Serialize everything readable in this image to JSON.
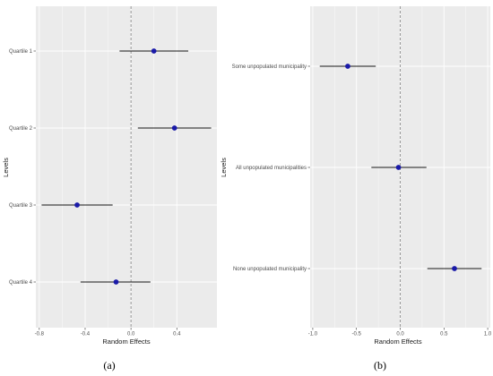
{
  "chart_data": [
    {
      "type": "scatter",
      "panel_label": "(a)",
      "xlabel": "Random Effects",
      "ylabel": "Levels",
      "categories": [
        "Quartile 1",
        "Quartile 2",
        "Quartile 3",
        "Quartile 4"
      ],
      "points": [
        {
          "level": "Quartile 1",
          "estimate": 0.2,
          "lower": -0.1,
          "upper": 0.5
        },
        {
          "level": "Quartile 2",
          "estimate": 0.38,
          "lower": 0.06,
          "upper": 0.7
        },
        {
          "level": "Quartile 3",
          "estimate": -0.47,
          "lower": -0.78,
          "upper": -0.16
        },
        {
          "level": "Quartile 4",
          "estimate": -0.13,
          "lower": -0.44,
          "upper": 0.17
        }
      ],
      "xlim": [
        -0.83,
        0.75
      ],
      "xticks": [
        -0.8,
        -0.4,
        0.0,
        0.4
      ],
      "xtick_labels": [
        "-0.8",
        "-0.4",
        "0.0",
        "0.4"
      ],
      "reference_line": 0,
      "grid": true,
      "colors": {
        "panel": "#ebebeb",
        "grid": "#ffffff",
        "point": "#1a1aa8",
        "errorbar": "#1a1a1a",
        "reference": "#808080"
      }
    },
    {
      "type": "scatter",
      "panel_label": "(b)",
      "xlabel": "Random Effects",
      "ylabel": "Levels",
      "categories": [
        "Some unpopulated municipality",
        "All unpopulated municipalities",
        "None unpopulated municipality"
      ],
      "points": [
        {
          "level": "Some unpopulated municipality",
          "estimate": -0.6,
          "lower": -0.92,
          "upper": -0.28
        },
        {
          "level": "All unpopulated municipalities",
          "estimate": -0.02,
          "lower": -0.33,
          "upper": 0.3
        },
        {
          "level": "None unpopulated municipality",
          "estimate": 0.62,
          "lower": 0.31,
          "upper": 0.93
        }
      ],
      "xlim": [
        -1.03,
        1.03
      ],
      "xticks": [
        -1.0,
        -0.5,
        0.0,
        0.5,
        1.0
      ],
      "xtick_labels": [
        "-1.0",
        "-0.5",
        "0.0",
        "0.5",
        "1.0"
      ],
      "reference_line": 0,
      "grid": true,
      "colors": {
        "panel": "#ebebeb",
        "grid": "#ffffff",
        "point": "#1a1aa8",
        "errorbar": "#1a1a1a",
        "reference": "#808080"
      }
    }
  ]
}
